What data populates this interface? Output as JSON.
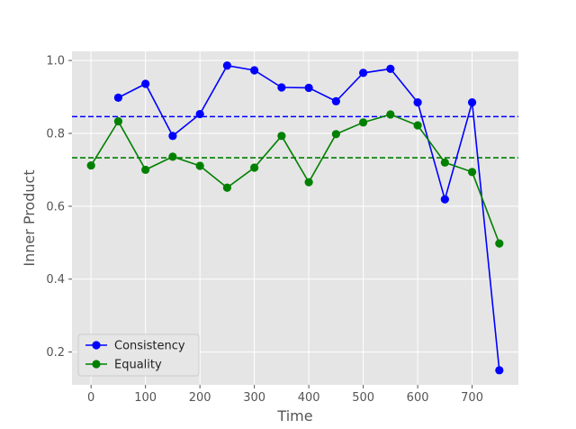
{
  "chart_data": {
    "type": "line",
    "xlabel": "Time",
    "ylabel": "Inner Product",
    "xlim": [
      -35,
      785
    ],
    "ylim": [
      0.11,
      1.025
    ],
    "xticks": [
      0,
      100,
      200,
      300,
      400,
      500,
      600,
      700
    ],
    "yticks": [
      0.2,
      0.4,
      0.6,
      0.8,
      1.0
    ],
    "ytick_labels": [
      "0.2",
      "0.4",
      "0.6",
      "0.8",
      "1.0"
    ],
    "grid": true,
    "legend_position": "lower-left",
    "series": [
      {
        "name": "Consistency",
        "color": "#0000ff",
        "x": [
          50,
          100,
          150,
          200,
          250,
          300,
          350,
          400,
          450,
          500,
          550,
          600,
          650,
          700,
          750
        ],
        "y": [
          0.898,
          0.936,
          0.793,
          0.853,
          0.986,
          0.973,
          0.926,
          0.925,
          0.888,
          0.966,
          0.977,
          0.885,
          0.619,
          0.885,
          0.15
        ],
        "hline": 0.846
      },
      {
        "name": "Equality",
        "color": "#008000",
        "x": [
          0,
          50,
          100,
          150,
          200,
          250,
          300,
          350,
          400,
          450,
          500,
          550,
          600,
          650,
          700,
          750
        ],
        "y": [
          0.712,
          0.833,
          0.7,
          0.736,
          0.711,
          0.651,
          0.706,
          0.793,
          0.666,
          0.798,
          0.83,
          0.852,
          0.822,
          0.72,
          0.694,
          0.498
        ],
        "hline": 0.733
      }
    ]
  }
}
